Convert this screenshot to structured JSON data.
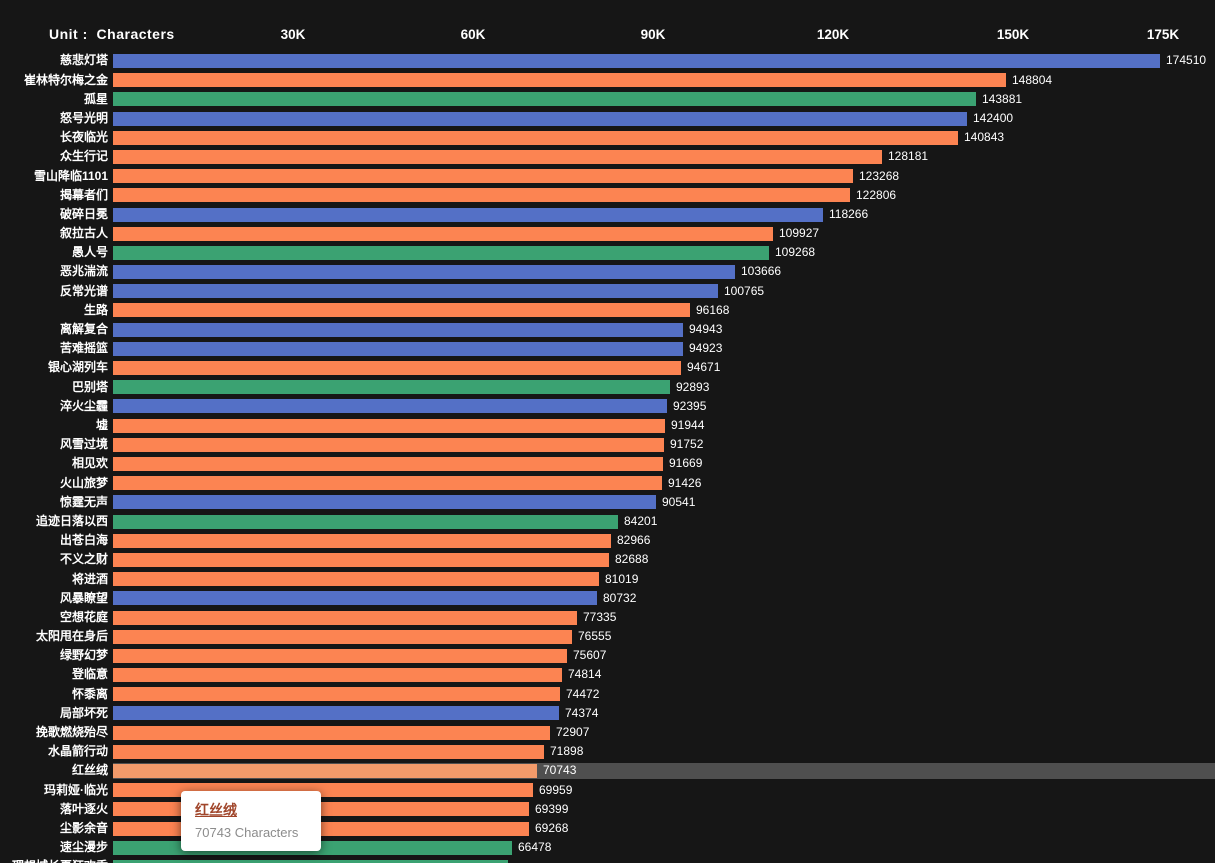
{
  "chart_data": {
    "type": "bar",
    "orientation": "horizontal",
    "unit_label": "Unit :  Characters",
    "xlabel": "",
    "ylabel": "",
    "xlim": [
      0,
      175000
    ],
    "grid": false,
    "ticks": [
      {
        "label": "30K",
        "value": 30000
      },
      {
        "label": "60K",
        "value": 60000
      },
      {
        "label": "90K",
        "value": 90000
      },
      {
        "label": "120K",
        "value": 120000
      },
      {
        "label": "150K",
        "value": 150000
      },
      {
        "label": "175K",
        "value": 175000
      }
    ],
    "series_colors": {
      "blue": "#5470c6",
      "orange": "#fc8452",
      "green": "#3ba272"
    },
    "highlight_label": "红丝绒",
    "highlight_band_color": "#4f4f4f",
    "rows": [
      {
        "label": "慈悲灯塔",
        "value": 174510,
        "color": "blue"
      },
      {
        "label": "崔林特尔梅之金",
        "value": 148804,
        "color": "orange"
      },
      {
        "label": "孤星",
        "value": 143881,
        "color": "green"
      },
      {
        "label": "怒号光明",
        "value": 142400,
        "color": "blue"
      },
      {
        "label": "长夜临光",
        "value": 140843,
        "color": "orange"
      },
      {
        "label": "众生行记",
        "value": 128181,
        "color": "orange"
      },
      {
        "label": "雪山降临1101",
        "value": 123268,
        "color": "orange"
      },
      {
        "label": "揭幕者们",
        "value": 122806,
        "color": "orange"
      },
      {
        "label": "破碎日冕",
        "value": 118266,
        "color": "blue"
      },
      {
        "label": "叙拉古人",
        "value": 109927,
        "color": "orange"
      },
      {
        "label": "愚人号",
        "value": 109268,
        "color": "green"
      },
      {
        "label": "恶兆湍流",
        "value": 103666,
        "color": "blue"
      },
      {
        "label": "反常光谱",
        "value": 100765,
        "color": "blue"
      },
      {
        "label": "生路",
        "value": 96168,
        "color": "orange"
      },
      {
        "label": "离解复合",
        "value": 94943,
        "color": "blue"
      },
      {
        "label": "苦难摇篮",
        "value": 94923,
        "color": "blue"
      },
      {
        "label": "银心湖列车",
        "value": 94671,
        "color": "orange"
      },
      {
        "label": "巴别塔",
        "value": 92893,
        "color": "green"
      },
      {
        "label": "淬火尘霾",
        "value": 92395,
        "color": "blue"
      },
      {
        "label": "墟",
        "value": 91944,
        "color": "orange"
      },
      {
        "label": "风雪过境",
        "value": 91752,
        "color": "orange"
      },
      {
        "label": "相见欢",
        "value": 91669,
        "color": "orange"
      },
      {
        "label": "火山旅梦",
        "value": 91426,
        "color": "orange"
      },
      {
        "label": "惊霆无声",
        "value": 90541,
        "color": "blue"
      },
      {
        "label": "追迹日落以西",
        "value": 84201,
        "color": "green"
      },
      {
        "label": "出苍白海",
        "value": 82966,
        "color": "orange"
      },
      {
        "label": "不义之财",
        "value": 82688,
        "color": "orange"
      },
      {
        "label": "将进酒",
        "value": 81019,
        "color": "orange"
      },
      {
        "label": "风暴瞭望",
        "value": 80732,
        "color": "blue"
      },
      {
        "label": "空想花庭",
        "value": 77335,
        "color": "orange"
      },
      {
        "label": "太阳甩在身后",
        "value": 76555,
        "color": "orange"
      },
      {
        "label": "绿野幻梦",
        "value": 75607,
        "color": "orange"
      },
      {
        "label": "登临意",
        "value": 74814,
        "color": "orange"
      },
      {
        "label": "怀黍离",
        "value": 74472,
        "color": "orange"
      },
      {
        "label": "局部坏死",
        "value": 74374,
        "color": "blue"
      },
      {
        "label": "挽歌燃烧殆尽",
        "value": 72907,
        "color": "orange"
      },
      {
        "label": "水晶箭行动",
        "value": 71898,
        "color": "orange"
      },
      {
        "label": "红丝绒",
        "value": 70743,
        "color": "orange"
      },
      {
        "label": "玛莉娅·临光",
        "value": 69959,
        "color": "orange"
      },
      {
        "label": "落叶逐火",
        "value": 69399,
        "color": "orange"
      },
      {
        "label": "尘影余音",
        "value": 69268,
        "color": "orange"
      },
      {
        "label": "速尘漫步",
        "value": 66478,
        "color": "green"
      },
      {
        "label": "理想城长夏狂欢季",
        "value": 65800,
        "color": "green",
        "estimated": true,
        "clipped": true
      }
    ]
  },
  "tooltip": {
    "title": "红丝绒",
    "text": "70743 Characters",
    "title_color": "#a0452a",
    "text_color": "#8c8c8c"
  }
}
